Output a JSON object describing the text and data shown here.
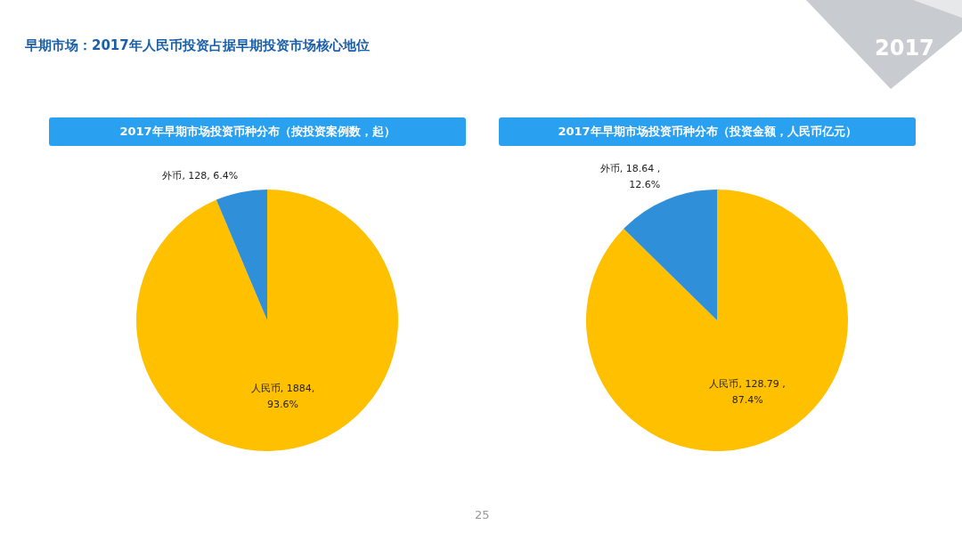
{
  "chart_data": [
    {
      "type": "pie",
      "title": "2017年早期市场投资币种分布（按投资案例数，起）",
      "categories": [
        "人民币",
        "外币"
      ],
      "values": [
        1884,
        128
      ],
      "colors": [
        "#ffc000",
        "#2f8fd9"
      ],
      "value_labels": [
        "1884,\n93.6%",
        "128, 6.4%"
      ],
      "annotations": [
        "早期市场：2017年人民币投资占据早期投资市场核心地位",
        "2017",
        "25"
      ]
    },
    {
      "type": "pie",
      "title": "2017年早期市场投资币种分布（投资金额，人民币亿元）",
      "categories": [
        "人民币",
        "外币"
      ],
      "values": [
        128.79,
        18.64
      ],
      "colors": [
        "#ffc000",
        "#2f8fd9"
      ],
      "value_labels": [
        "128.79 ,\n87.4%",
        "18.64 ,\n12.6%"
      ]
    }
  ]
}
